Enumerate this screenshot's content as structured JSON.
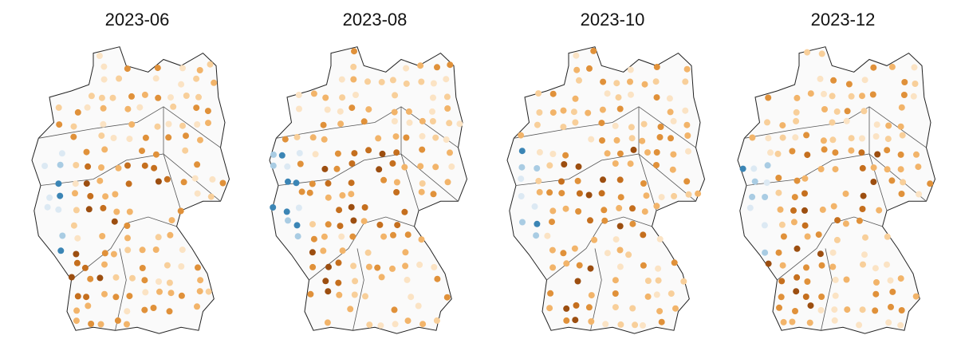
{
  "panels": [
    {
      "title": "2023-06"
    },
    {
      "title": "2023-08"
    },
    {
      "title": "2023-10"
    },
    {
      "title": "2023-12"
    }
  ]
}
